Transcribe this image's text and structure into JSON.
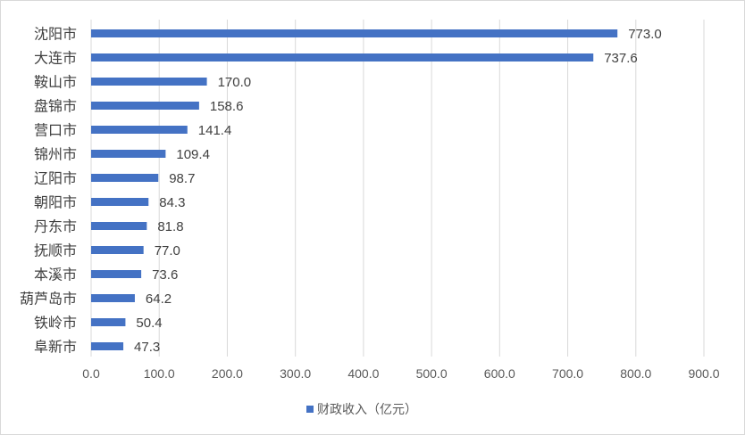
{
  "chart_data": {
    "type": "bar",
    "orientation": "horizontal",
    "categories": [
      "沈阳市",
      "大连市",
      "鞍山市",
      "盘锦市",
      "营口市",
      "锦州市",
      "辽阳市",
      "朝阳市",
      "丹东市",
      "抚顺市",
      "本溪市",
      "葫芦岛市",
      "铁岭市",
      "阜新市"
    ],
    "series": [
      {
        "name": "财政收入（亿元）",
        "color": "#4472c4",
        "values": [
          773.0,
          737.6,
          170.0,
          158.6,
          141.4,
          109.4,
          98.7,
          84.3,
          81.8,
          77.0,
          73.6,
          64.2,
          50.4,
          47.3
        ],
        "data_labels": [
          "773.0",
          "737.6",
          "170.0",
          "158.6",
          "141.4",
          "109.4",
          "98.7",
          "84.3",
          "81.8",
          "77.0",
          "73.6",
          "64.2",
          "50.4",
          "47.3"
        ]
      }
    ],
    "xlim": [
      0,
      900
    ],
    "x_ticks": [
      "0.0",
      "100.0",
      "200.0",
      "300.0",
      "400.0",
      "500.0",
      "600.0",
      "700.0",
      "800.0",
      "900.0"
    ],
    "grid": "vertical",
    "legend": "bottom"
  }
}
